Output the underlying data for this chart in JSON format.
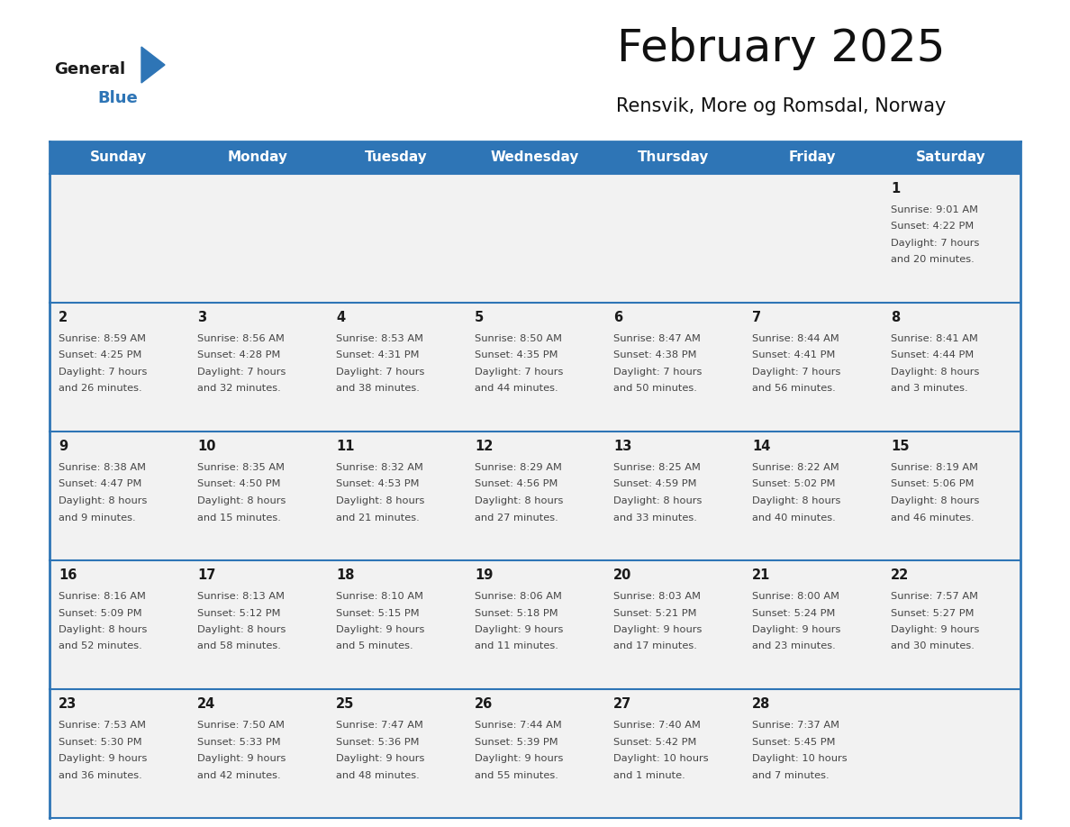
{
  "title": "February 2025",
  "subtitle": "Rensvik, More og Romsdal, Norway",
  "header_bg": "#2E75B6",
  "header_text_color": "#FFFFFF",
  "day_names": [
    "Sunday",
    "Monday",
    "Tuesday",
    "Wednesday",
    "Thursday",
    "Friday",
    "Saturday"
  ],
  "border_color": "#2E75B6",
  "text_color": "#333333",
  "logo_general_color": "#1a1a1a",
  "logo_blue_color": "#2E75B6",
  "logo_triangle_color": "#2E75B6",
  "calendar": [
    [
      null,
      null,
      null,
      null,
      null,
      null,
      {
        "day": 1,
        "sunrise": "9:01 AM",
        "sunset": "4:22 PM",
        "daylight": "7 hours",
        "daylight2": "and 20 minutes."
      }
    ],
    [
      {
        "day": 2,
        "sunrise": "8:59 AM",
        "sunset": "4:25 PM",
        "daylight": "7 hours",
        "daylight2": "and 26 minutes."
      },
      {
        "day": 3,
        "sunrise": "8:56 AM",
        "sunset": "4:28 PM",
        "daylight": "7 hours",
        "daylight2": "and 32 minutes."
      },
      {
        "day": 4,
        "sunrise": "8:53 AM",
        "sunset": "4:31 PM",
        "daylight": "7 hours",
        "daylight2": "and 38 minutes."
      },
      {
        "day": 5,
        "sunrise": "8:50 AM",
        "sunset": "4:35 PM",
        "daylight": "7 hours",
        "daylight2": "and 44 minutes."
      },
      {
        "day": 6,
        "sunrise": "8:47 AM",
        "sunset": "4:38 PM",
        "daylight": "7 hours",
        "daylight2": "and 50 minutes."
      },
      {
        "day": 7,
        "sunrise": "8:44 AM",
        "sunset": "4:41 PM",
        "daylight": "7 hours",
        "daylight2": "and 56 minutes."
      },
      {
        "day": 8,
        "sunrise": "8:41 AM",
        "sunset": "4:44 PM",
        "daylight": "8 hours",
        "daylight2": "and 3 minutes."
      }
    ],
    [
      {
        "day": 9,
        "sunrise": "8:38 AM",
        "sunset": "4:47 PM",
        "daylight": "8 hours",
        "daylight2": "and 9 minutes."
      },
      {
        "day": 10,
        "sunrise": "8:35 AM",
        "sunset": "4:50 PM",
        "daylight": "8 hours",
        "daylight2": "and 15 minutes."
      },
      {
        "day": 11,
        "sunrise": "8:32 AM",
        "sunset": "4:53 PM",
        "daylight": "8 hours",
        "daylight2": "and 21 minutes."
      },
      {
        "day": 12,
        "sunrise": "8:29 AM",
        "sunset": "4:56 PM",
        "daylight": "8 hours",
        "daylight2": "and 27 minutes."
      },
      {
        "day": 13,
        "sunrise": "8:25 AM",
        "sunset": "4:59 PM",
        "daylight": "8 hours",
        "daylight2": "and 33 minutes."
      },
      {
        "day": 14,
        "sunrise": "8:22 AM",
        "sunset": "5:02 PM",
        "daylight": "8 hours",
        "daylight2": "and 40 minutes."
      },
      {
        "day": 15,
        "sunrise": "8:19 AM",
        "sunset": "5:06 PM",
        "daylight": "8 hours",
        "daylight2": "and 46 minutes."
      }
    ],
    [
      {
        "day": 16,
        "sunrise": "8:16 AM",
        "sunset": "5:09 PM",
        "daylight": "8 hours",
        "daylight2": "and 52 minutes."
      },
      {
        "day": 17,
        "sunrise": "8:13 AM",
        "sunset": "5:12 PM",
        "daylight": "8 hours",
        "daylight2": "and 58 minutes."
      },
      {
        "day": 18,
        "sunrise": "8:10 AM",
        "sunset": "5:15 PM",
        "daylight": "9 hours",
        "daylight2": "and 5 minutes."
      },
      {
        "day": 19,
        "sunrise": "8:06 AM",
        "sunset": "5:18 PM",
        "daylight": "9 hours",
        "daylight2": "and 11 minutes."
      },
      {
        "day": 20,
        "sunrise": "8:03 AM",
        "sunset": "5:21 PM",
        "daylight": "9 hours",
        "daylight2": "and 17 minutes."
      },
      {
        "day": 21,
        "sunrise": "8:00 AM",
        "sunset": "5:24 PM",
        "daylight": "9 hours",
        "daylight2": "and 23 minutes."
      },
      {
        "day": 22,
        "sunrise": "7:57 AM",
        "sunset": "5:27 PM",
        "daylight": "9 hours",
        "daylight2": "and 30 minutes."
      }
    ],
    [
      {
        "day": 23,
        "sunrise": "7:53 AM",
        "sunset": "5:30 PM",
        "daylight": "9 hours",
        "daylight2": "and 36 minutes."
      },
      {
        "day": 24,
        "sunrise": "7:50 AM",
        "sunset": "5:33 PM",
        "daylight": "9 hours",
        "daylight2": "and 42 minutes."
      },
      {
        "day": 25,
        "sunrise": "7:47 AM",
        "sunset": "5:36 PM",
        "daylight": "9 hours",
        "daylight2": "and 48 minutes."
      },
      {
        "day": 26,
        "sunrise": "7:44 AM",
        "sunset": "5:39 PM",
        "daylight": "9 hours",
        "daylight2": "and 55 minutes."
      },
      {
        "day": 27,
        "sunrise": "7:40 AM",
        "sunset": "5:42 PM",
        "daylight": "10 hours",
        "daylight2": "and 1 minute."
      },
      {
        "day": 28,
        "sunrise": "7:37 AM",
        "sunset": "5:45 PM",
        "daylight": "10 hours",
        "daylight2": "and 7 minutes."
      },
      null
    ]
  ]
}
